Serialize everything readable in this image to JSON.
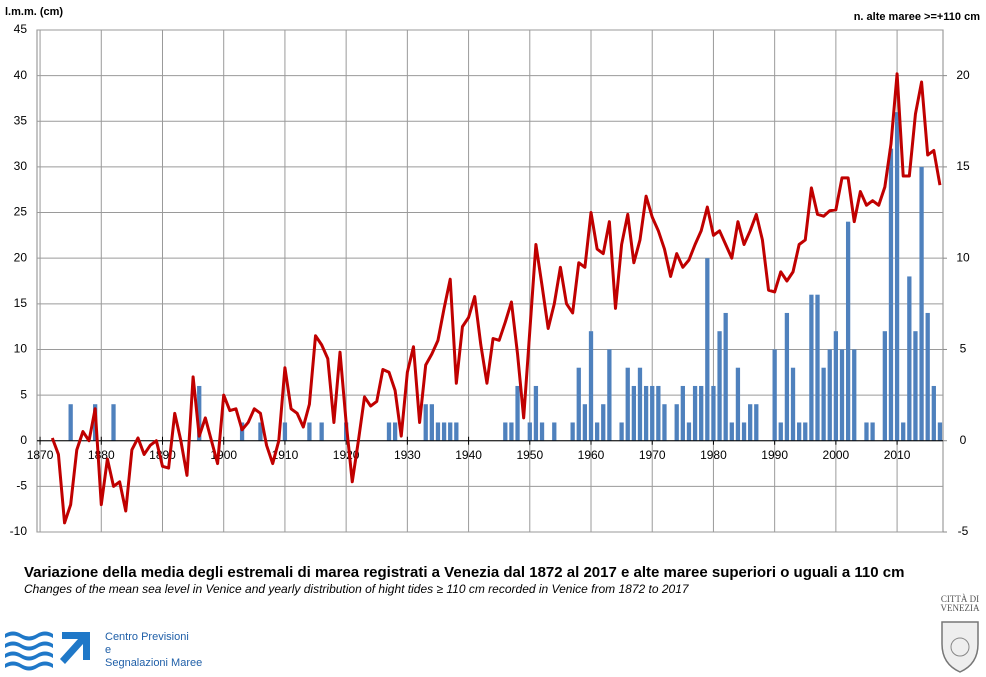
{
  "chart_data": {
    "type": "combo",
    "y_label": "l.m.m. (cm)",
    "y2_label": "n. alte maree >=+110 cm",
    "title": "Variazione della media degli estremali di marea registrati a Venezia dal 1872 al 2017 e alte maree superiori o uguali a 110 cm",
    "subtitle": "Changes of the mean sea level in Venice and yearly distribution of hight tides ≥ 110 cm recorded in Venice from 1872 to 2017",
    "x": [
      1872,
      1873,
      1874,
      1875,
      1876,
      1877,
      1878,
      1879,
      1880,
      1881,
      1882,
      1883,
      1884,
      1885,
      1886,
      1887,
      1888,
      1889,
      1890,
      1891,
      1892,
      1893,
      1894,
      1895,
      1896,
      1897,
      1898,
      1899,
      1900,
      1901,
      1902,
      1903,
      1904,
      1905,
      1906,
      1907,
      1908,
      1909,
      1910,
      1911,
      1912,
      1913,
      1914,
      1915,
      1916,
      1917,
      1918,
      1919,
      1920,
      1921,
      1922,
      1923,
      1924,
      1925,
      1926,
      1927,
      1928,
      1929,
      1930,
      1931,
      1932,
      1933,
      1934,
      1935,
      1936,
      1937,
      1938,
      1939,
      1940,
      1941,
      1942,
      1943,
      1944,
      1945,
      1946,
      1947,
      1948,
      1949,
      1950,
      1951,
      1952,
      1953,
      1954,
      1955,
      1956,
      1957,
      1958,
      1959,
      1960,
      1961,
      1962,
      1963,
      1964,
      1965,
      1966,
      1967,
      1968,
      1969,
      1970,
      1971,
      1972,
      1973,
      1974,
      1975,
      1976,
      1977,
      1978,
      1979,
      1980,
      1981,
      1982,
      1983,
      1984,
      1985,
      1986,
      1987,
      1988,
      1989,
      1990,
      1991,
      1992,
      1993,
      1994,
      1995,
      1996,
      1997,
      1998,
      1999,
      2000,
      2001,
      2002,
      2003,
      2004,
      2005,
      2006,
      2007,
      2008,
      2009,
      2010,
      2011,
      2012,
      2013,
      2014,
      2015,
      2016,
      2017
    ],
    "series": [
      {
        "type": "bar",
        "axis": "y2",
        "color": "#4f81bd",
        "values": [
          null,
          null,
          null,
          2,
          null,
          null,
          null,
          2,
          null,
          null,
          2,
          null,
          null,
          null,
          null,
          null,
          null,
          null,
          null,
          null,
          null,
          null,
          null,
          null,
          3,
          null,
          null,
          null,
          null,
          null,
          null,
          1,
          null,
          null,
          1,
          null,
          null,
          null,
          1,
          null,
          null,
          null,
          1,
          null,
          1,
          null,
          null,
          null,
          1,
          null,
          null,
          null,
          null,
          null,
          null,
          1,
          1,
          null,
          null,
          null,
          null,
          2,
          2,
          1,
          1,
          1,
          1,
          null,
          null,
          null,
          null,
          null,
          null,
          null,
          1,
          1,
          3,
          null,
          1,
          3,
          1,
          null,
          1,
          null,
          null,
          1,
          4,
          2,
          6,
          1,
          2,
          5,
          null,
          1,
          4,
          3,
          4,
          3,
          3,
          3,
          2,
          null,
          2,
          3,
          1,
          3,
          3,
          10,
          3,
          6,
          7,
          1,
          4,
          1,
          2,
          2,
          null,
          null,
          5,
          1,
          7,
          4,
          1,
          1,
          8,
          8,
          4,
          5,
          6,
          5,
          12,
          5,
          null,
          1,
          1,
          null,
          6,
          16,
          18,
          1,
          9,
          6,
          15,
          7,
          3,
          1
        ]
      },
      {
        "type": "line",
        "color": "#c00000",
        "values": [
          0.3,
          -1.5,
          -9,
          -7,
          -1,
          1,
          0,
          3.5,
          -7,
          -2,
          -5,
          -4.5,
          -7.7,
          -1,
          0.3,
          -1.5,
          -0.5,
          0,
          -2.8,
          -3,
          3,
          0,
          -3.8,
          7,
          0.5,
          2.5,
          0,
          -2.5,
          5,
          3.3,
          3.5,
          1.2,
          2,
          3.5,
          3,
          -0.5,
          -2.5,
          0,
          8,
          3.5,
          3,
          1.5,
          4,
          11.5,
          10.5,
          9,
          2,
          9.7,
          2,
          -4.5,
          0,
          4.8,
          3.8,
          4.3,
          7.8,
          7.5,
          5.5,
          0.5,
          7.5,
          10.3,
          2,
          8.3,
          9.5,
          11,
          14.5,
          17.7,
          6.3,
          12.5,
          13.5,
          15.8,
          10.5,
          6.3,
          11.2,
          11,
          13,
          15.2,
          9.5,
          2.5,
          12,
          21.5,
          17,
          12.3,
          15,
          19,
          15,
          14,
          19.5,
          19,
          25,
          21,
          20.5,
          24,
          14.5,
          21.5,
          24.8,
          19.5,
          22,
          26.8,
          24.5,
          23,
          21,
          18,
          20.5,
          19,
          19.8,
          21.5,
          23,
          25.6,
          22.5,
          23,
          21.5,
          20,
          24,
          21.5,
          23,
          24.8,
          22,
          16.5,
          16.3,
          18.5,
          17.5,
          18.5,
          21.5,
          22,
          27.7,
          24.8,
          24.6,
          25.2,
          25.3,
          28.8,
          28.8,
          24,
          27.3,
          25.8,
          26.3,
          25.8,
          27.8,
          32.5,
          40.2,
          29,
          29,
          35.8,
          39.3,
          31.3,
          31.8,
          28
        ]
      }
    ],
    "xlim": [
      1869.5,
      2017.5
    ],
    "xticks": [
      1870,
      1880,
      1890,
      1900,
      1910,
      1920,
      1930,
      1940,
      1950,
      1960,
      1970,
      1980,
      1990,
      2000,
      2010
    ],
    "ylim": [
      -10,
      45
    ],
    "yticks": [
      -10,
      -5,
      0,
      5,
      10,
      15,
      20,
      25,
      30,
      35,
      40,
      45
    ],
    "y2lim": [
      -5,
      22.5
    ],
    "y2ticks": [
      -5,
      0,
      5,
      10,
      15,
      20
    ],
    "grid": true
  },
  "logo": {
    "lines": [
      "Centro Previsioni",
      "e",
      "Segnalazioni Maree"
    ]
  },
  "crest": {
    "lines": [
      "CITTÀ DI",
      "VENEZIA"
    ]
  }
}
